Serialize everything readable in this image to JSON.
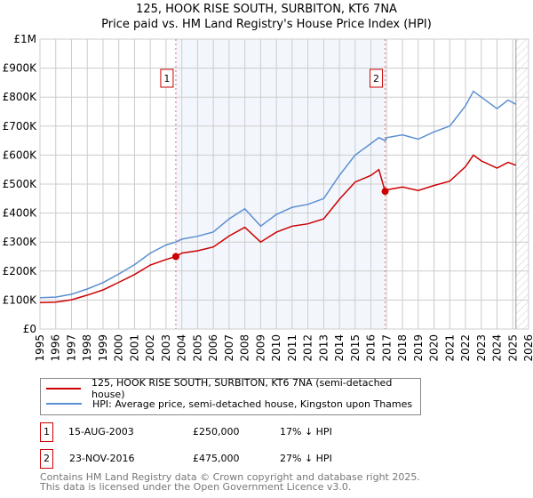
{
  "title": "125, HOOK RISE SOUTH, SURBITON, KT6 7NA",
  "subtitle": "Price paid vs. HM Land Registry's House Price Index (HPI)",
  "chart_data": {
    "type": "line",
    "title": "125, HOOK RISE SOUTH, SURBITON, KT6 7NA",
    "subtitle": "Price paid vs. HM Land Registry's House Price Index (HPI)",
    "xlim": [
      1995,
      2026
    ],
    "ylim": [
      0,
      1000000
    ],
    "x_ticks": [
      "1995",
      "1996",
      "1997",
      "1998",
      "1999",
      "2000",
      "2001",
      "2002",
      "2003",
      "2004",
      "2005",
      "2006",
      "2007",
      "2008",
      "2009",
      "2010",
      "2011",
      "2012",
      "2013",
      "2014",
      "2015",
      "2016",
      "2017",
      "2018",
      "2019",
      "2020",
      "2021",
      "2022",
      "2023",
      "2024",
      "2025",
      "2026"
    ],
    "y_ticks": [
      {
        "v": 0,
        "label": "£0"
      },
      {
        "v": 100000,
        "label": "£100K"
      },
      {
        "v": 200000,
        "label": "£200K"
      },
      {
        "v": 300000,
        "label": "£300K"
      },
      {
        "v": 400000,
        "label": "£400K"
      },
      {
        "v": 500000,
        "label": "£500K"
      },
      {
        "v": 600000,
        "label": "£600K"
      },
      {
        "v": 700000,
        "label": "£700K"
      },
      {
        "v": 800000,
        "label": "£800K"
      },
      {
        "v": 900000,
        "label": "£900K"
      },
      {
        "v": 1000000,
        "label": "£1M"
      }
    ],
    "grid": true,
    "shaded_range": [
      2003.62,
      2016.9
    ],
    "hatched_from": 2025.2,
    "series": [
      {
        "name": "125, HOOK RISE SOUTH, SURBITON, KT6 7NA (semi-detached house)",
        "color": "#cc0000",
        "x": [
          1995,
          1996,
          1997,
          1998,
          1999,
          2000,
          2001,
          2002,
          2003,
          2003.62,
          2004,
          2005,
          2006,
          2007,
          2008,
          2009,
          2010,
          2011,
          2012,
          2013,
          2014,
          2015,
          2016,
          2016.5,
          2016.9,
          2017,
          2018,
          2019,
          2020,
          2021,
          2022,
          2022.5,
          2023,
          2024,
          2024.7,
          2025.2
        ],
        "y": [
          91000,
          93000,
          101000,
          117000,
          135000,
          161000,
          188000,
          221000,
          240000,
          250000,
          262000,
          270000,
          283000,
          321000,
          351000,
          300000,
          334000,
          355000,
          363000,
          380000,
          448000,
          507000,
          530000,
          550000,
          475000,
          480000,
          490000,
          478000,
          495000,
          510000,
          560000,
          600000,
          580000,
          555000,
          575000,
          565000
        ]
      },
      {
        "name": "HPI: Average price, semi-detached house, Kingston upon Thames",
        "color": "#5b8fd0",
        "x": [
          1995,
          1996,
          1997,
          1998,
          1999,
          2000,
          2001,
          2002,
          2003,
          2003.62,
          2004,
          2005,
          2006,
          2007,
          2008,
          2009,
          2010,
          2011,
          2012,
          2013,
          2014,
          2015,
          2016,
          2016.5,
          2016.9,
          2017,
          2018,
          2019,
          2020,
          2021,
          2022,
          2022.5,
          2023,
          2024,
          2024.7,
          2025.2
        ],
        "y": [
          108000,
          110000,
          120000,
          138000,
          160000,
          190000,
          222000,
          262000,
          290000,
          300000,
          310000,
          320000,
          335000,
          380000,
          415000,
          355000,
          395000,
          420000,
          430000,
          450000,
          530000,
          600000,
          640000,
          660000,
          650000,
          660000,
          670000,
          655000,
          680000,
          700000,
          770000,
          820000,
          800000,
          760000,
          790000,
          775000
        ]
      }
    ],
    "annotations": [
      {
        "label": "1",
        "x": 2003.62,
        "y": 250000
      },
      {
        "label": "2",
        "x": 2016.9,
        "y": 475000
      }
    ]
  },
  "legend": [
    {
      "label": "125, HOOK RISE SOUTH, SURBITON, KT6 7NA (semi-detached house)",
      "color": "#cc0000"
    },
    {
      "label": "HPI: Average price, semi-detached house, Kingston upon Thames",
      "color": "#5b8fd0"
    }
  ],
  "transactions": [
    {
      "num": "1",
      "date": "15-AUG-2003",
      "price": "£250,000",
      "hpi": "17% ↓ HPI"
    },
    {
      "num": "2",
      "date": "23-NOV-2016",
      "price": "£475,000",
      "hpi": "27% ↓ HPI"
    }
  ],
  "footer": [
    "Contains HM Land Registry data © Crown copyright and database right 2025.",
    "This data is licensed under the Open Government Licence v3.0."
  ]
}
